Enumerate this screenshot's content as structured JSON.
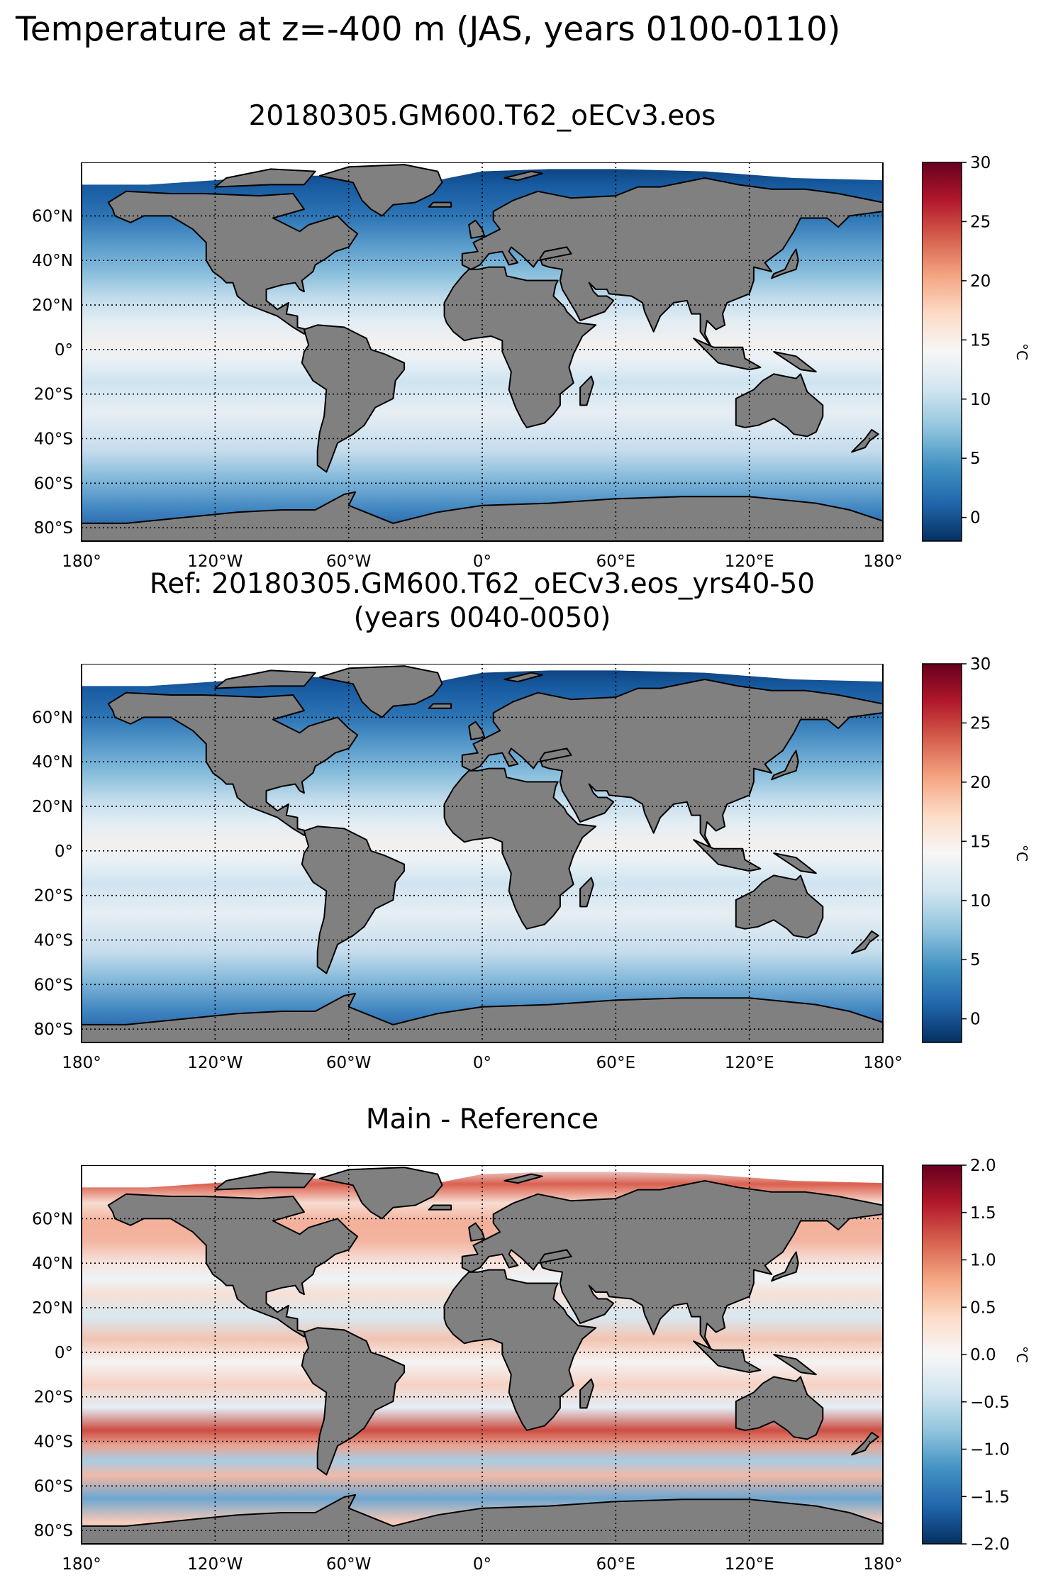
{
  "figure": {
    "suptitle": "Temperature at z=-400 m (JAS, years 0100-0110)"
  },
  "panels": [
    {
      "title_lines": [
        "20180305.GM600.T62_oECv3.eos"
      ],
      "colorbar": {
        "min": -2,
        "max": 30,
        "ticks": [
          "30",
          "25",
          "20",
          "15",
          "10",
          "5",
          "0"
        ],
        "tick_values": [
          30,
          25,
          20,
          15,
          10,
          5,
          0
        ],
        "label": "°C"
      },
      "fill": "mean"
    },
    {
      "title_lines": [
        "Ref: 20180305.GM600.T62_oECv3.eos_yrs40-50",
        "(years 0040-0050)"
      ],
      "colorbar": {
        "min": -2,
        "max": 30,
        "ticks": [
          "30",
          "25",
          "20",
          "15",
          "10",
          "5",
          "0"
        ],
        "tick_values": [
          30,
          25,
          20,
          15,
          10,
          5,
          0
        ],
        "label": "°C"
      },
      "fill": "mean"
    },
    {
      "title_lines": [
        "Main - Reference"
      ],
      "colorbar": {
        "min": -2.0,
        "max": 2.0,
        "ticks": [
          "2.0",
          "1.5",
          "1.0",
          "0.5",
          "0.0",
          "−0.5",
          "−1.0",
          "−1.5",
          "−2.0"
        ],
        "tick_values": [
          2.0,
          1.5,
          1.0,
          0.5,
          0.0,
          -0.5,
          -1.0,
          -1.5,
          -2.0
        ],
        "label": "°C"
      },
      "fill": "diff"
    }
  ],
  "axes": {
    "lon_labels": [
      "180°",
      "120°W",
      "60°W",
      "0°",
      "60°E",
      "120°E",
      "180°"
    ],
    "lat_labels": [
      "60°N",
      "40°N",
      "20°N",
      "0°",
      "20°S",
      "40°S",
      "60°S",
      "80°S"
    ]
  },
  "colors": {
    "land": "#808080",
    "ice": "#ffffff",
    "cmap": [
      "#053061",
      "#2166ac",
      "#4393c3",
      "#92c5de",
      "#d1e5f0",
      "#f7f7f7",
      "#fddbc7",
      "#f4a582",
      "#d6604d",
      "#b2182b",
      "#67001f"
    ]
  }
}
